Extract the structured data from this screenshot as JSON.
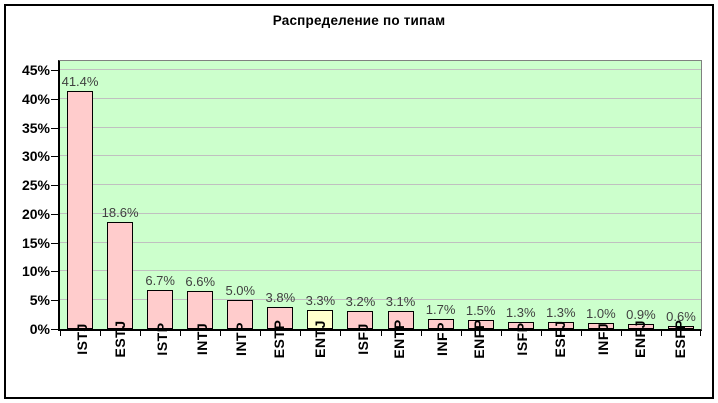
{
  "chart_data": {
    "type": "bar",
    "title": "Распределение по типам",
    "categories": [
      "ISTJ",
      "ESTJ",
      "ISTP",
      "INTJ",
      "INTP",
      "ESTP",
      "ENTJ",
      "ISFJ",
      "ENTP",
      "INFP",
      "ENFP",
      "ISFP",
      "ESFJ",
      "INFJ",
      "ENFJ",
      "ESFP"
    ],
    "values": [
      41.4,
      18.6,
      6.7,
      6.6,
      5.0,
      3.8,
      3.3,
      3.2,
      3.1,
      1.7,
      1.5,
      1.3,
      1.3,
      1.0,
      0.9,
      0.6
    ],
    "labels": [
      "41.4%",
      "18.6%",
      "6.7%",
      "6.6%",
      "5.0%",
      "3.8%",
      "3.3%",
      "3.2%",
      "3.1%",
      "1.7%",
      "1.5%",
      "1.3%",
      "1.3%",
      "1.0%",
      "0.9%",
      "0.6%"
    ],
    "xlabel": "",
    "ylabel": "",
    "ylim": [
      0,
      45
    ],
    "y_tick_step": 5,
    "y_tick_labels": [
      "0%",
      "5%",
      "10%",
      "15%",
      "20%",
      "25%",
      "30%",
      "35%",
      "40%",
      "45%"
    ],
    "grid": true,
    "legend": "none",
    "colors": {
      "bar_fill": "#ffcccc",
      "bar_border": "#000000",
      "highlight_category": "ENTJ",
      "highlight_fill": "#ffffcc",
      "plot_background": "#ccffcc",
      "gridline": "#c0c0c0",
      "value_label": "#404040",
      "axis_text": "#000000"
    }
  }
}
